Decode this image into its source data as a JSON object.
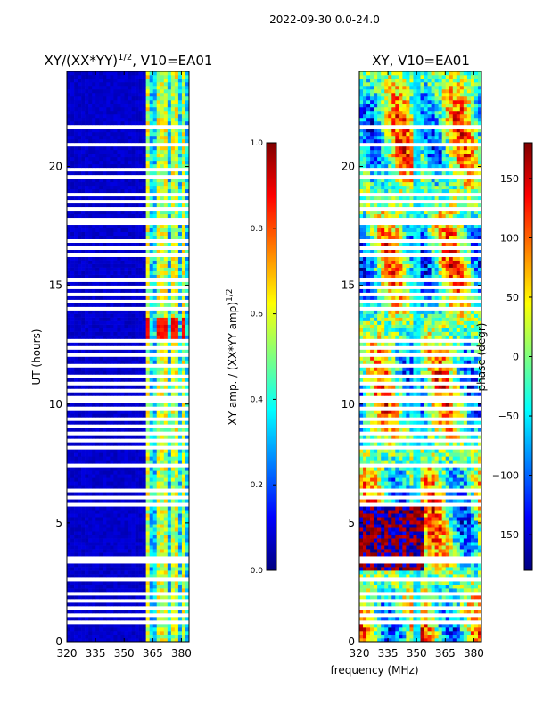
{
  "figure_title": "2022-09-30 0.0-24.0",
  "colors": {
    "missing": "#ffffff",
    "axis": "#000000",
    "jet": [
      "#00007f",
      "#0000ff",
      "#007fff",
      "#00ffff",
      "#7fff7f",
      "#ffff00",
      "#ff7f00",
      "#ff0000",
      "#7f0000"
    ]
  },
  "chart_data": [
    {
      "id": "amp",
      "type": "heatmap",
      "title_main": "XY/(XX*YY)",
      "title_sup": "1/2",
      "title_suffix": ", V10=EA01",
      "xlabel": "",
      "ylabel": "UT (hours)",
      "xlim": [
        320,
        384
      ],
      "ylim": [
        0,
        24
      ],
      "xticks": [
        320,
        335,
        350,
        365,
        380
      ],
      "yticks": [
        0,
        5,
        10,
        15,
        20
      ],
      "colorbar": {
        "label": "XY amp. / (XX*YY amp)",
        "label_sup": "1/2",
        "range": [
          0.0,
          1.0
        ],
        "ticks": [
          "0.0",
          "0.2",
          "0.4",
          "0.6",
          "0.8",
          "1.0"
        ]
      },
      "features": {
        "signal_band_mhz": [
          361,
          384
        ],
        "signal_channels_mhz": [
          362.5,
          368.0,
          371.0,
          376.5,
          380.5
        ],
        "high_amp_window_hours": [
          12.8,
          13.6
        ],
        "low_amp_value": 0.05,
        "band_amp_value": 0.45
      }
    },
    {
      "id": "phase",
      "type": "heatmap",
      "title_main": "XY, V10=EA01",
      "xlabel": "frequency (MHz)",
      "ylabel": "",
      "xlim": [
        320,
        384
      ],
      "ylim": [
        0,
        24
      ],
      "xticks": [
        320,
        335,
        350,
        365,
        380
      ],
      "yticks": [
        0,
        5,
        10,
        15,
        20
      ],
      "colorbar": {
        "label": "phase (degr)",
        "range": [
          -180,
          180
        ],
        "ticks": [
          "−150",
          "−100",
          "−50",
          "0",
          "50",
          "100",
          "150"
        ],
        "tick_values": [
          -150,
          -100,
          -50,
          0,
          50,
          100,
          150
        ]
      },
      "features": {
        "noisy_window_hours": [
          3.0,
          5.7
        ],
        "noisy_window_mhz": [
          320,
          353
        ],
        "vertical_stripe_mhz": 350
      }
    }
  ],
  "flagged_time_gaps_hours": [
    0.75,
    1.05,
    1.4,
    1.7,
    2.0,
    2.55,
    3.25,
    3.5,
    5.75,
    6.05,
    6.3,
    6.55,
    7.0,
    7.35,
    7.6,
    8.1,
    8.4,
    8.75,
    9.05,
    9.35,
    9.55,
    9.8,
    10.05,
    10.25,
    10.5,
    10.85,
    11.15,
    11.6,
    12.0,
    12.3,
    12.6,
    13.95,
    14.3,
    14.6,
    14.9,
    15.2,
    15.55,
    15.85,
    16.2,
    16.5,
    16.8,
    17.2,
    17.55,
    17.75,
    17.95,
    18.2,
    18.45,
    18.75,
    19.0,
    19.3,
    19.55,
    19.8,
    20.05,
    20.85,
    21.1,
    21.4,
    21.65,
    21.85,
    22.05
  ],
  "flagged_time_gap_widths_hours": [
    0.08,
    0.08,
    0.08,
    0.1,
    0.08,
    0.12,
    0.3,
    0.12,
    0.1,
    0.08,
    0.08,
    0.1,
    0.1,
    0.08,
    0.08,
    0.08,
    0.08,
    0.08,
    0.08,
    0.08,
    0.08,
    0.08,
    0.08,
    0.08,
    0.08,
    0.1,
    0.08,
    0.08,
    0.08,
    0.08,
    0.08,
    0.08,
    0.08,
    0.08,
    0.08,
    0.08,
    0.08,
    0.08,
    0.08,
    0.08,
    0.08,
    0.1,
    0.08,
    0.06,
    0.06,
    0.08,
    0.08,
    0.08,
    0.08,
    0.08,
    0.08,
    0.15,
    0.08,
    0.08,
    0.08,
    0.08,
    0.06,
    0.06,
    0.06
  ]
}
